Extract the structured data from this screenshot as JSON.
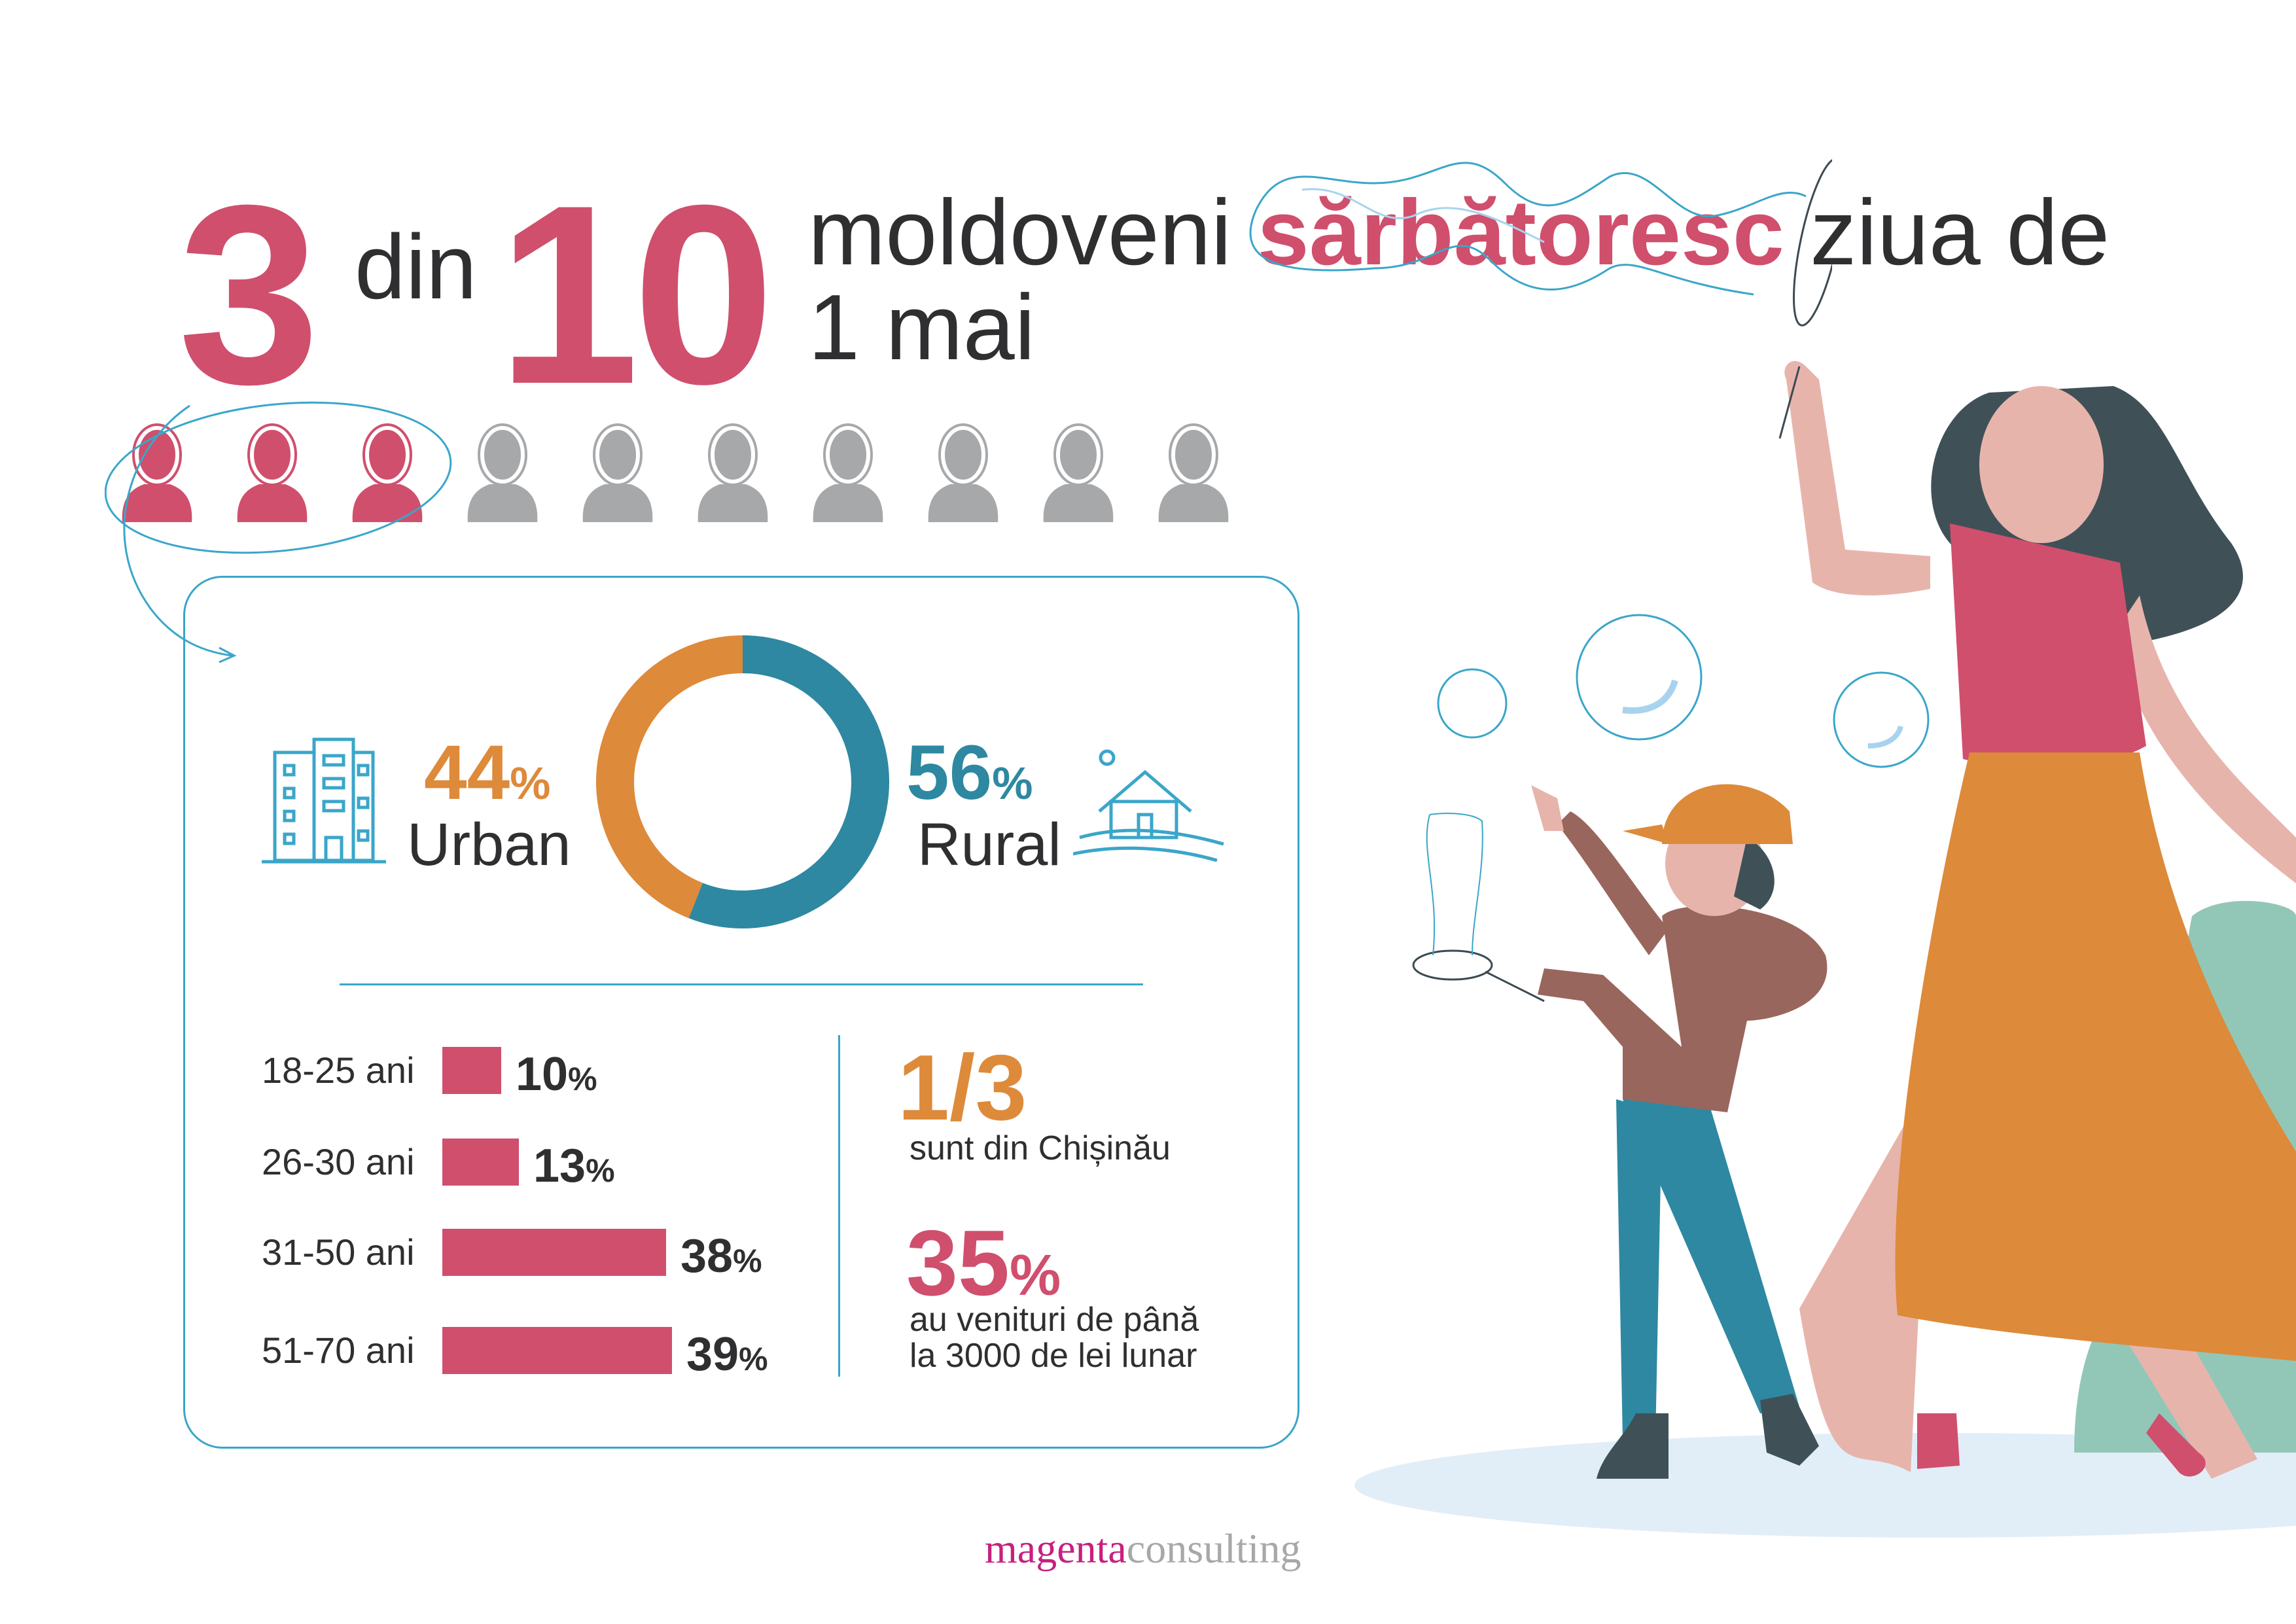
{
  "headline": {
    "num_a": "3",
    "din": "din",
    "num_b": "10",
    "line1_pre": "moldoveni",
    "line1_highlight": "sărbătoresc",
    "line1_post": "ziua de",
    "line2": "1 mai"
  },
  "people": {
    "highlighted": 3,
    "total": 10
  },
  "colors": {
    "pink": "#d04f6d",
    "orange": "#dd8a3a",
    "teal": "#2e88a1",
    "line": "#3aa6c9",
    "grey": "#a7a8aa"
  },
  "chart_data": [
    {
      "type": "pie",
      "title": "",
      "categories": [
        "Urban",
        "Rural"
      ],
      "values": [
        44,
        56
      ],
      "labels": {
        "urban_value": "44",
        "rural_value": "56",
        "percent": "%",
        "urban": "Urban",
        "rural": "Rural"
      }
    },
    {
      "type": "bar",
      "categories": [
        "18-25 ani",
        "26-30 ani",
        "31-50 ani",
        "51-70 ani"
      ],
      "values": [
        10,
        13,
        38,
        39
      ],
      "value_labels": [
        "10",
        "13",
        "38",
        "39"
      ],
      "percent": "%"
    }
  ],
  "facts": {
    "fraction": "1/3",
    "fraction_text": "sunt din Chișinău",
    "income_value": "35",
    "income_pct": "%",
    "income_line1": "au venituri de până",
    "income_line2": "la 3000 de lei lunar"
  },
  "footer": {
    "brand_a": "magenta",
    "brand_b": "consulting"
  }
}
